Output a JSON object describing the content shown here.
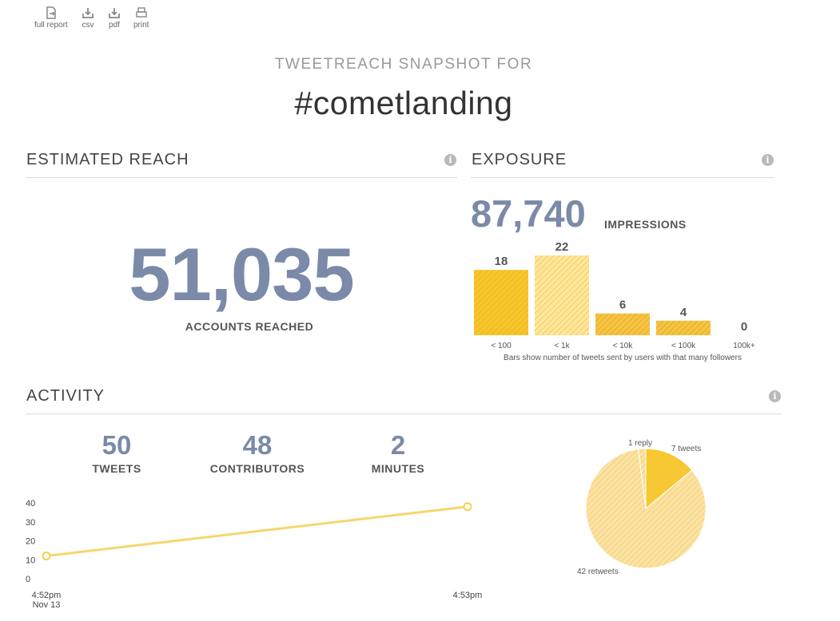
{
  "toolbar": {
    "full_report": "full report",
    "csv": "csv",
    "pdf": "pdf",
    "print": "print"
  },
  "header": {
    "label": "TWEETREACH SNAPSHOT FOR",
    "hashtag": "#cometlanding"
  },
  "reach": {
    "title": "ESTIMATED REACH",
    "value": "51,035",
    "label": "ACCOUNTS REACHED"
  },
  "exposure": {
    "title": "EXPOSURE",
    "impressions": "87,740",
    "impressions_label": "IMPRESSIONS",
    "note": "Bars show number of tweets sent by users with that many followers"
  },
  "activity": {
    "title": "ACTIVITY",
    "stats": [
      {
        "value": "50",
        "label": "TWEETS"
      },
      {
        "value": "48",
        "label": "CONTRIBUTORS"
      },
      {
        "value": "2",
        "label": "MINUTES"
      }
    ]
  },
  "colors": {
    "accent": "#7a8aa8",
    "bar_fill": "#f7c833",
    "bar_fill_dark": "#f0b42a",
    "line": "#f5d76e"
  },
  "chart_data": [
    {
      "type": "bar",
      "categories": [
        "< 100",
        "< 1k",
        "< 10k",
        "< 100k",
        "100k+"
      ],
      "values": [
        18,
        22,
        6,
        4,
        0
      ],
      "title": "",
      "xlabel": "",
      "ylabel": ""
    },
    {
      "type": "line",
      "x": [
        "4:52pm",
        "4:53pm"
      ],
      "x_sublabels": [
        "Nov 13",
        ""
      ],
      "values": [
        12,
        38
      ],
      "ylim": [
        0,
        40
      ],
      "yticks": [
        0,
        10,
        20,
        30,
        40
      ]
    },
    {
      "type": "pie",
      "slices": [
        {
          "label": "7 tweets",
          "value": 7
        },
        {
          "label": "42 retweets",
          "value": 42
        },
        {
          "label": "1 reply",
          "value": 1
        }
      ]
    }
  ]
}
